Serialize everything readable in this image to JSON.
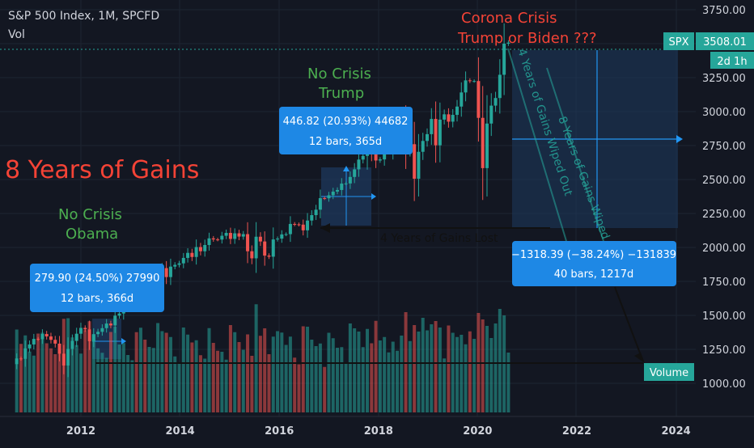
{
  "header": {
    "title": "S&P 500 Index, 1M, SPCFD",
    "sub": "Vol"
  },
  "price_axis": {
    "ticks": [
      "3750.00",
      "3500.00",
      "3250.00",
      "3000.00",
      "2750.00",
      "2500.00",
      "2250.00",
      "2000.00",
      "1750.00",
      "1500.00",
      "1250.00",
      "1000.00"
    ]
  },
  "time_axis": {
    "ticks": [
      "2012",
      "2014",
      "2016",
      "2018",
      "2020",
      "2022",
      "2024"
    ]
  },
  "badges": {
    "symbol": "SPX",
    "price": "3508.01",
    "countdown": "2d 1h",
    "volume": "Volume"
  },
  "annotations": {
    "gains": "8 Years of Gains",
    "obama_1": "No Crisis",
    "obama_2": "Obama",
    "trump_1": "No Crisis",
    "trump_2": "Trump",
    "corona_1": "Corona Crisis",
    "corona_2": "Trump or Biden ???",
    "wiped_4": "4 Years of Gains Wiped Out",
    "wiped_8": "8 Years of Gains Wiped",
    "lost_4": "4 Years of Gains Lost"
  },
  "measures": {
    "m1_line1": "279.90 (24.50%) 27990",
    "m1_line2": "12 bars, 366d",
    "m2_line1": "446.82 (20.93%) 44682",
    "m2_line2": "12 bars, 365d",
    "m3_line1": "−1318.39 (−38.24%) −131839",
    "m3_line2": "40 bars, 1217d"
  },
  "colors": {
    "up": "#26a69a",
    "down": "#ef5350",
    "bg": "#131722",
    "text_green": "#4caf50",
    "text_red": "#f44336",
    "box_blue": "#1e88e5"
  },
  "chart_data": {
    "type": "candlestick",
    "interval": "1M",
    "ylim": [
      900,
      3800
    ],
    "xlim": [
      2010.6,
      2024.3
    ],
    "closes": [
      [
        2010.7,
        1141
      ],
      [
        2010.8,
        1183
      ],
      [
        2010.9,
        1180
      ],
      [
        2011.0,
        1257
      ],
      [
        2011.1,
        1286
      ],
      [
        2011.2,
        1327
      ],
      [
        2011.3,
        1325
      ],
      [
        2011.4,
        1363
      ],
      [
        2011.5,
        1345
      ],
      [
        2011.6,
        1320
      ],
      [
        2011.7,
        1292
      ],
      [
        2011.8,
        1218
      ],
      [
        2011.9,
        1131
      ],
      [
        2012.0,
        1253
      ],
      [
        2012.1,
        1312
      ],
      [
        2012.2,
        1365
      ],
      [
        2012.3,
        1408
      ],
      [
        2012.4,
        1397
      ],
      [
        2012.5,
        1310
      ],
      [
        2012.6,
        1362
      ],
      [
        2012.7,
        1379
      ],
      [
        2012.8,
        1406
      ],
      [
        2012.9,
        1440
      ],
      [
        2013.0,
        1426
      ],
      [
        2013.1,
        1498
      ],
      [
        2013.2,
        1514
      ],
      [
        2013.3,
        1569
      ],
      [
        2013.4,
        1597
      ],
      [
        2013.5,
        1631
      ],
      [
        2013.6,
        1606
      ],
      [
        2013.7,
        1685
      ],
      [
        2013.8,
        1633
      ],
      [
        2013.9,
        1681
      ],
      [
        2014.0,
        1756
      ],
      [
        2014.1,
        1806
      ],
      [
        2014.2,
        1848
      ],
      [
        2014.3,
        1782
      ],
      [
        2014.4,
        1859
      ],
      [
        2014.5,
        1872
      ],
      [
        2014.6,
        1883
      ],
      [
        2014.7,
        1923
      ],
      [
        2014.8,
        1960
      ],
      [
        2014.9,
        1930
      ],
      [
        2015.0,
        2003
      ],
      [
        2015.1,
        1972
      ],
      [
        2015.2,
        2018
      ],
      [
        2015.3,
        2067
      ],
      [
        2015.4,
        2059
      ],
      [
        2015.5,
        2058
      ],
      [
        2015.6,
        2086
      ],
      [
        2015.7,
        2107
      ],
      [
        2015.8,
        2063
      ],
      [
        2015.9,
        2104
      ],
      [
        2016.0,
        2080
      ],
      [
        2016.1,
        2098
      ],
      [
        2016.2,
        1972
      ],
      [
        2016.3,
        1920
      ],
      [
        2016.4,
        2079
      ],
      [
        2016.5,
        2044
      ],
      [
        2016.6,
        1940
      ],
      [
        2016.7,
        1932
      ],
      [
        2016.8,
        2059
      ],
      [
        2016.9,
        2065
      ],
      [
        2017.0,
        2096
      ],
      [
        2017.1,
        2098
      ],
      [
        2017.2,
        2173
      ],
      [
        2017.3,
        2170
      ],
      [
        2017.4,
        2168
      ],
      [
        2017.5,
        2126
      ],
      [
        2017.6,
        2198
      ],
      [
        2017.7,
        2238
      ],
      [
        2017.8,
        2278
      ],
      [
        2017.9,
        2363
      ],
      [
        2018.0,
        2362
      ],
      [
        2018.1,
        2384
      ],
      [
        2018.2,
        2411
      ],
      [
        2018.3,
        2423
      ],
      [
        2018.4,
        2470
      ],
      [
        2018.5,
        2471
      ],
      [
        2018.6,
        2519
      ],
      [
        2018.7,
        2575
      ],
      [
        2018.8,
        2647
      ],
      [
        2018.9,
        2674
      ],
      [
        2019.0,
        2823
      ],
      [
        2019.1,
        2713
      ],
      [
        2019.2,
        2640
      ],
      [
        2019.3,
        2648
      ],
      [
        2019.4,
        2705
      ],
      [
        2019.5,
        2718
      ],
      [
        2019.6,
        2816
      ],
      [
        2019.7,
        2901
      ],
      [
        2019.8,
        2913
      ],
      [
        2019.9,
        2711
      ],
      [
        2020.0,
        2760
      ],
      [
        2020.1,
        2506
      ],
      [
        2020.2,
        2704
      ],
      [
        2020.3,
        2784
      ],
      [
        2020.4,
        2834
      ],
      [
        2020.5,
        2946
      ],
      [
        2020.6,
        2752
      ],
      [
        2020.7,
        2941
      ],
      [
        2020.8,
        2980
      ],
      [
        2020.9,
        2926
      ],
      [
        2021.0,
        2976
      ],
      [
        2021.1,
        3037
      ],
      [
        2021.2,
        3141
      ],
      [
        2021.3,
        3230
      ],
      [
        2021.4,
        3225
      ],
      [
        2021.5,
        3225
      ],
      [
        2021.6,
        2954
      ],
      [
        2021.7,
        2584
      ],
      [
        2021.8,
        2912
      ],
      [
        2021.9,
        3044
      ],
      [
        2022.0,
        3100
      ],
      [
        2022.1,
        3271
      ],
      [
        2022.2,
        3500
      ],
      [
        2022.3,
        3508
      ]
    ]
  }
}
